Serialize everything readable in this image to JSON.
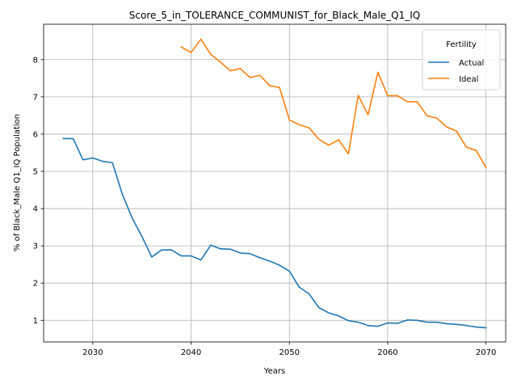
{
  "chart_data": {
    "type": "line",
    "title": "Score_5_in_TOLERANCE_COMMUNIST_for_Black_Male_Q1_IQ",
    "xlabel": "Years",
    "ylabel": "% of Black_Male Q1_IQ Population",
    "xlim": [
      2025,
      2072
    ],
    "ylim": [
      0.42,
      8.95
    ],
    "x_ticks": [
      2030,
      2040,
      2050,
      2060,
      2070
    ],
    "y_ticks": [
      1,
      2,
      3,
      4,
      5,
      6,
      7,
      8
    ],
    "grid": true,
    "legend": {
      "title": "Fertility",
      "placement": "top-right"
    },
    "series": [
      {
        "name": "Actual",
        "color": "#1f77b4",
        "x": [
          2027,
          2028,
          2029,
          2030,
          2031,
          2032,
          2033,
          2034,
          2035,
          2036,
          2037,
          2038,
          2039,
          2040,
          2041,
          2042,
          2043,
          2044,
          2045,
          2046,
          2047,
          2048,
          2049,
          2050,
          2051,
          2052,
          2053,
          2054,
          2055,
          2056,
          2057,
          2058,
          2059,
          2060,
          2061,
          2062,
          2063,
          2064,
          2065,
          2066,
          2067,
          2068,
          2069,
          2070
        ],
        "values": [
          5.88,
          5.88,
          5.31,
          5.36,
          5.27,
          5.23,
          4.39,
          3.75,
          3.25,
          2.7,
          2.89,
          2.89,
          2.73,
          2.73,
          2.62,
          3.02,
          2.92,
          2.91,
          2.81,
          2.79,
          2.68,
          2.59,
          2.48,
          2.32,
          1.89,
          1.71,
          1.34,
          1.2,
          1.12,
          0.99,
          0.95,
          0.86,
          0.84,
          0.93,
          0.92,
          1.01,
          1.0,
          0.95,
          0.95,
          0.91,
          0.89,
          0.86,
          0.82,
          0.8
        ]
      },
      {
        "name": "Ideal",
        "color": "#ff7f0e",
        "x": [
          2039,
          2040,
          2041,
          2042,
          2043,
          2044,
          2045,
          2046,
          2047,
          2048,
          2049,
          2050,
          2051,
          2052,
          2053,
          2054,
          2055,
          2056,
          2057,
          2058,
          2059,
          2060,
          2061,
          2062,
          2063,
          2064,
          2065,
          2066,
          2067,
          2068,
          2069,
          2070
        ],
        "values": [
          8.34,
          8.19,
          8.55,
          8.14,
          7.93,
          7.7,
          7.76,
          7.52,
          7.58,
          7.3,
          7.25,
          6.38,
          6.25,
          6.17,
          5.86,
          5.7,
          5.85,
          5.47,
          7.04,
          6.52,
          7.66,
          7.03,
          7.03,
          6.87,
          6.87,
          6.49,
          6.43,
          6.19,
          6.08,
          5.65,
          5.56,
          5.1
        ]
      }
    ]
  }
}
